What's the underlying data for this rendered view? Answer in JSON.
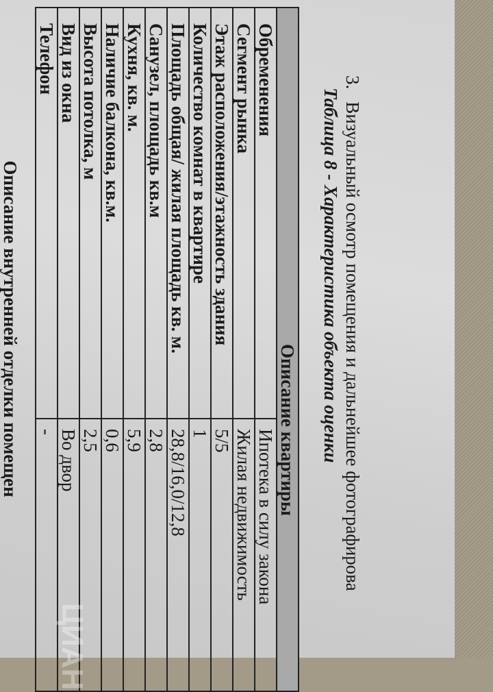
{
  "section_heading": {
    "number": "3.",
    "text": "Визуальный осмотр помещения и дальнейшее фотографирова"
  },
  "table_caption": "Таблица 8 - Характеристика объекта оценки",
  "table": {
    "header": "Описание квартиры",
    "rows": [
      {
        "label": "Обременения",
        "value": "Ипотека в силу закона"
      },
      {
        "label": "Сегмент рынка",
        "value": "Жилая недвижимость"
      },
      {
        "label": "Этаж расположения/этажность здания",
        "value": "5/5"
      },
      {
        "label": "Количество комнат в квартире",
        "value": "1"
      },
      {
        "label": "Площадь общая/ жилая площадь кв. м.",
        "value": "28,8/16,0/12,8"
      },
      {
        "label": "Санузел, площадь кв.м",
        "value": "2,8"
      },
      {
        "label": "Кухня, кв. м.",
        "value": "5,9"
      },
      {
        "label": "Наличие балкона, кв.м.",
        "value": "0,6"
      },
      {
        "label": "Высота потолка, м",
        "value": "2,5"
      },
      {
        "label": "Вид из окна",
        "value": "Во двор"
      },
      {
        "label": "Телефон",
        "value": "-"
      }
    ]
  },
  "next_section_heading": "Описание внутренней отделки помещен",
  "watermark": "ЦИАН"
}
